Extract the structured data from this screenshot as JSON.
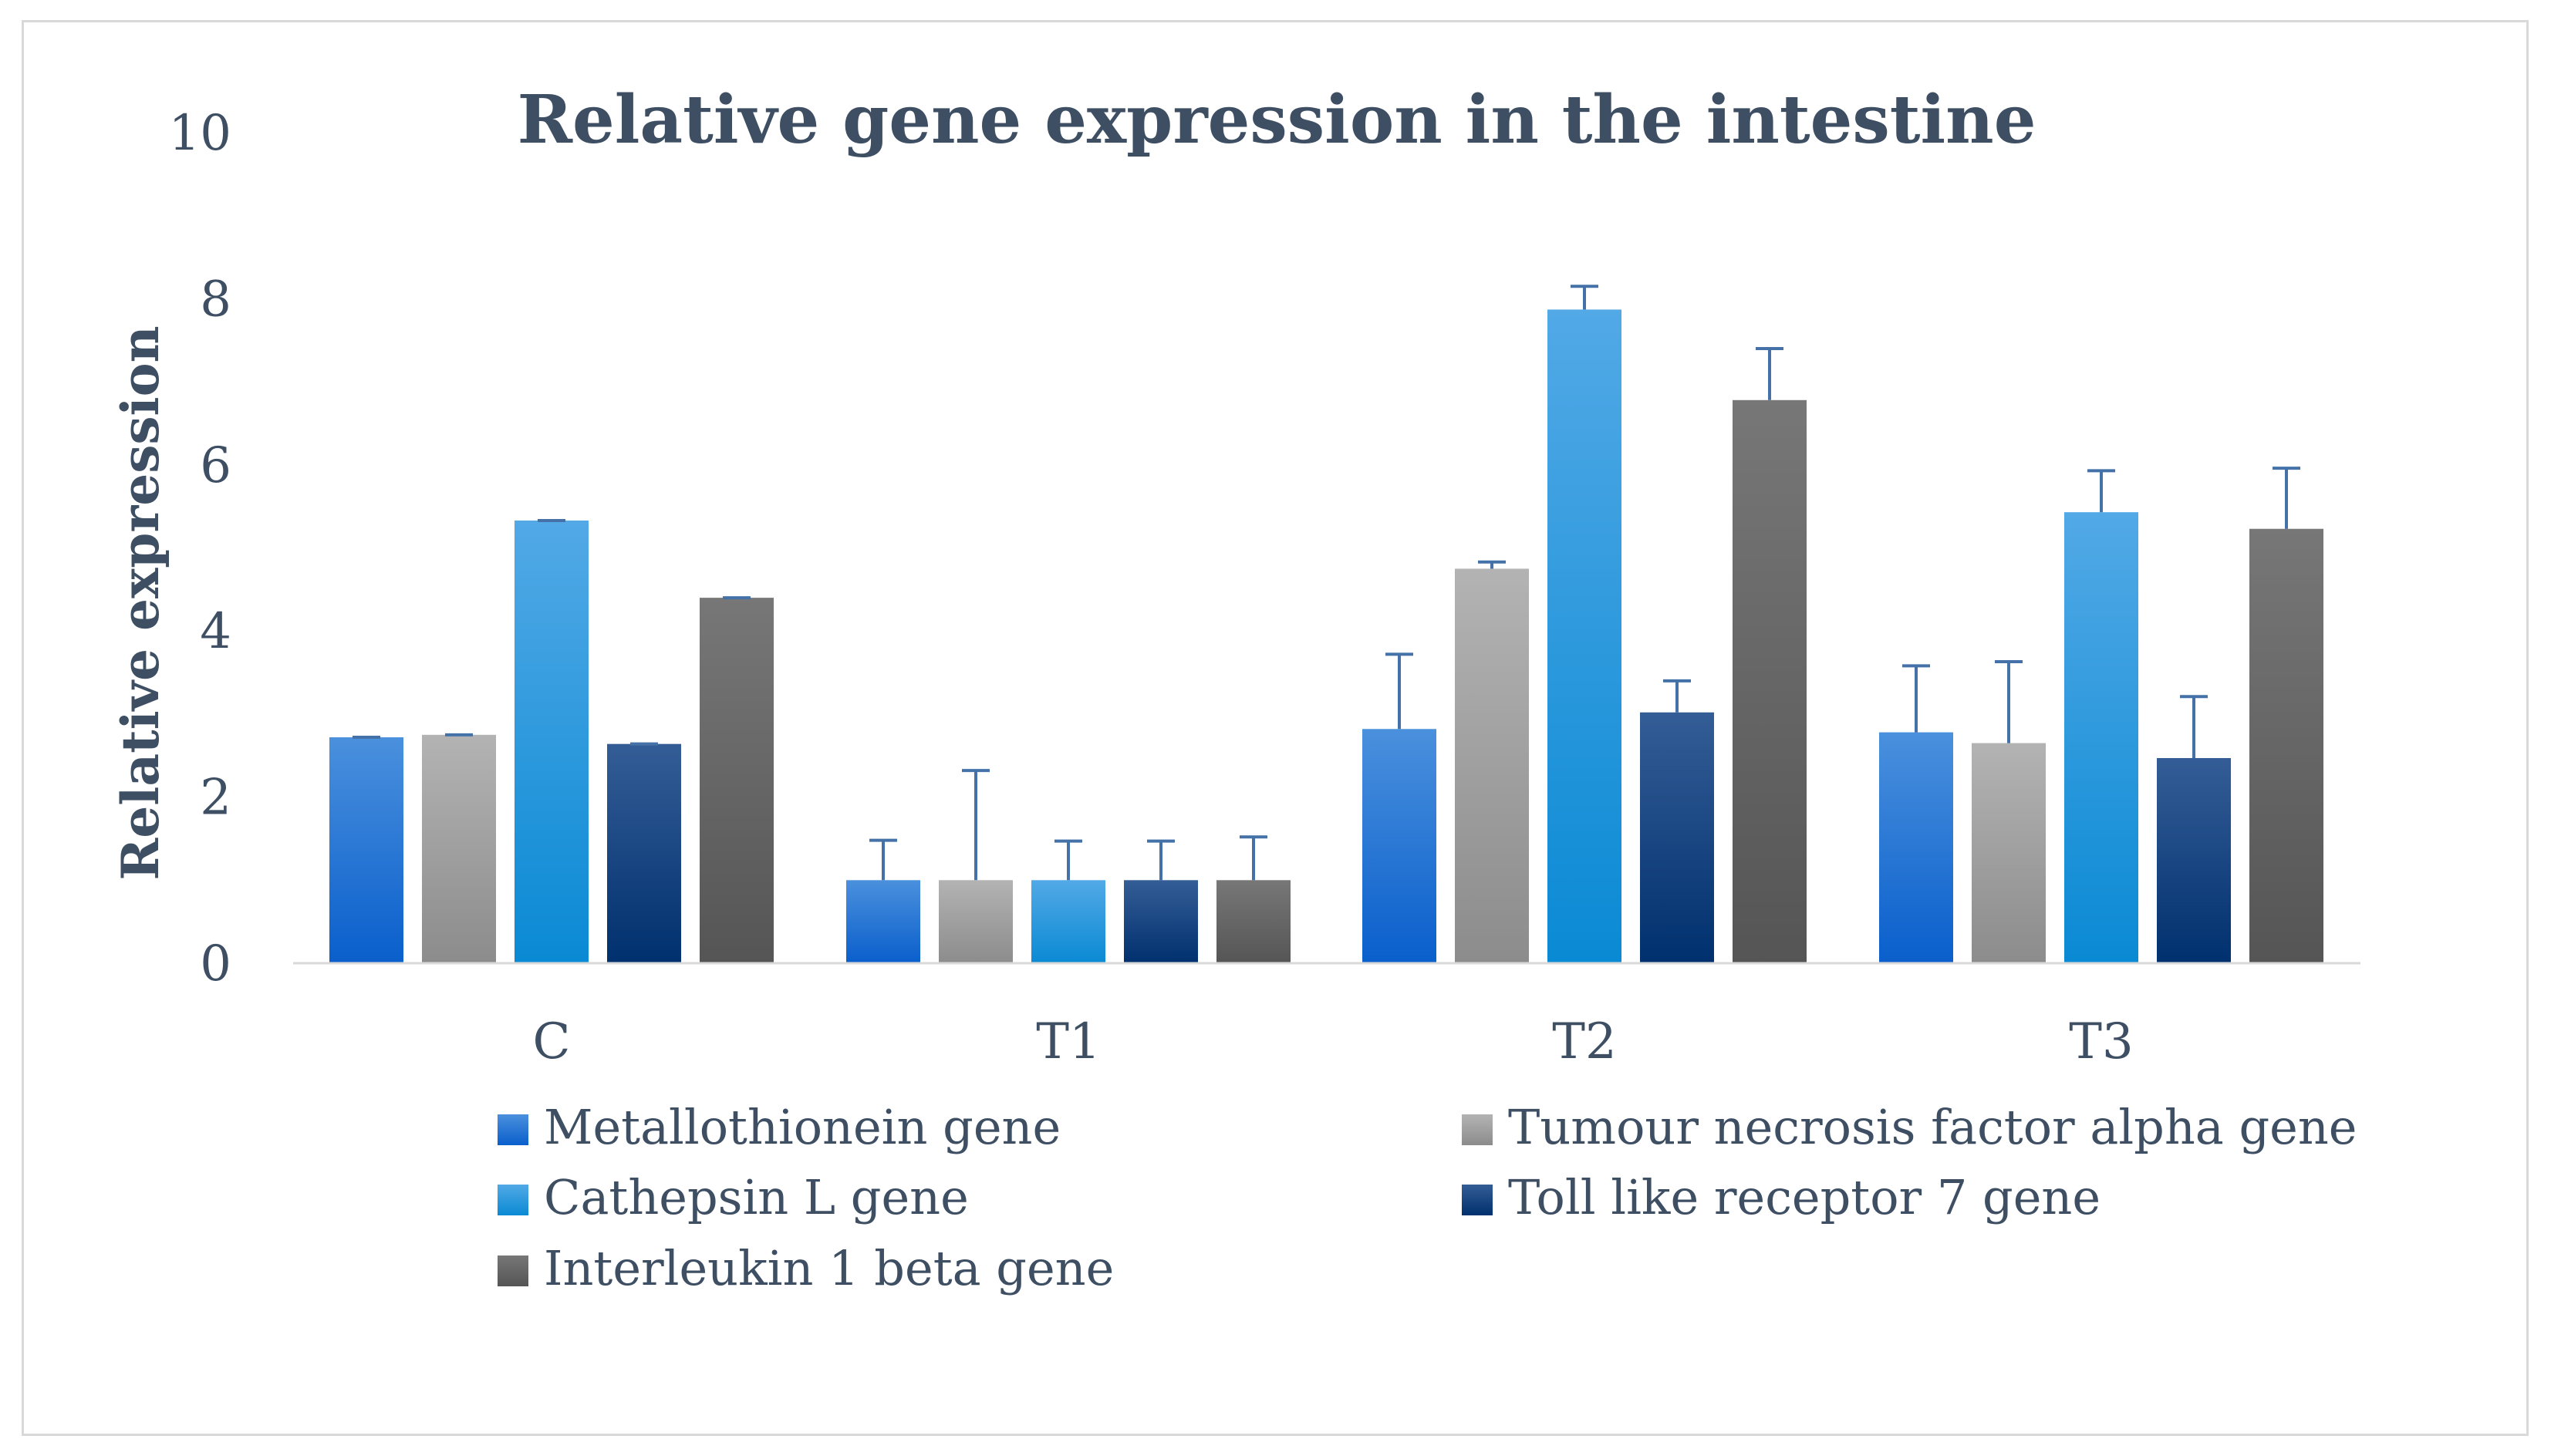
{
  "chart_data": {
    "type": "bar",
    "title": "Relative gene expression in the intestine",
    "xlabel": "",
    "ylabel": "Relative expression",
    "ylim": [
      0,
      10
    ],
    "yticks": [
      0,
      2,
      4,
      6,
      8,
      10
    ],
    "categories": [
      "C",
      "T1",
      "T2",
      "T3"
    ],
    "series": [
      {
        "name": "Metallothionein gene",
        "values": [
          2.72,
          1.0,
          2.82,
          2.78
        ],
        "errors": [
          0.0,
          0.48,
          0.9,
          0.8
        ],
        "color_top": "#4a90dd",
        "color_bottom": "#0a5fcc"
      },
      {
        "name": "Tumour necrosis factor alpha gene",
        "values": [
          2.75,
          1.0,
          4.75,
          2.65
        ],
        "errors": [
          0.0,
          1.32,
          0.08,
          0.98
        ],
        "color_top": "#b3b3b3",
        "color_bottom": "#8c8c8c"
      },
      {
        "name": "Cathepsin L gene",
        "values": [
          5.33,
          1.0,
          7.87,
          5.43
        ],
        "errors": [
          0.0,
          0.47,
          0.28,
          0.5
        ],
        "color_top": "#52a9e6",
        "color_bottom": "#0a8ad4"
      },
      {
        "name": "Toll like receptor 7 gene",
        "values": [
          2.64,
          1.0,
          3.02,
          2.47
        ],
        "errors": [
          0.0,
          0.47,
          0.38,
          0.74
        ],
        "color_top": "#345d96",
        "color_bottom": "#00306e"
      },
      {
        "name": "Interleukin 1 beta gene",
        "values": [
          4.4,
          1.0,
          6.78,
          5.23
        ],
        "errors": [
          0.0,
          0.52,
          0.62,
          0.73
        ],
        "color_top": "#777777",
        "color_bottom": "#555555"
      }
    ],
    "grid": false,
    "error_bar_color": "#4472a8",
    "legend_position": "bottom"
  }
}
